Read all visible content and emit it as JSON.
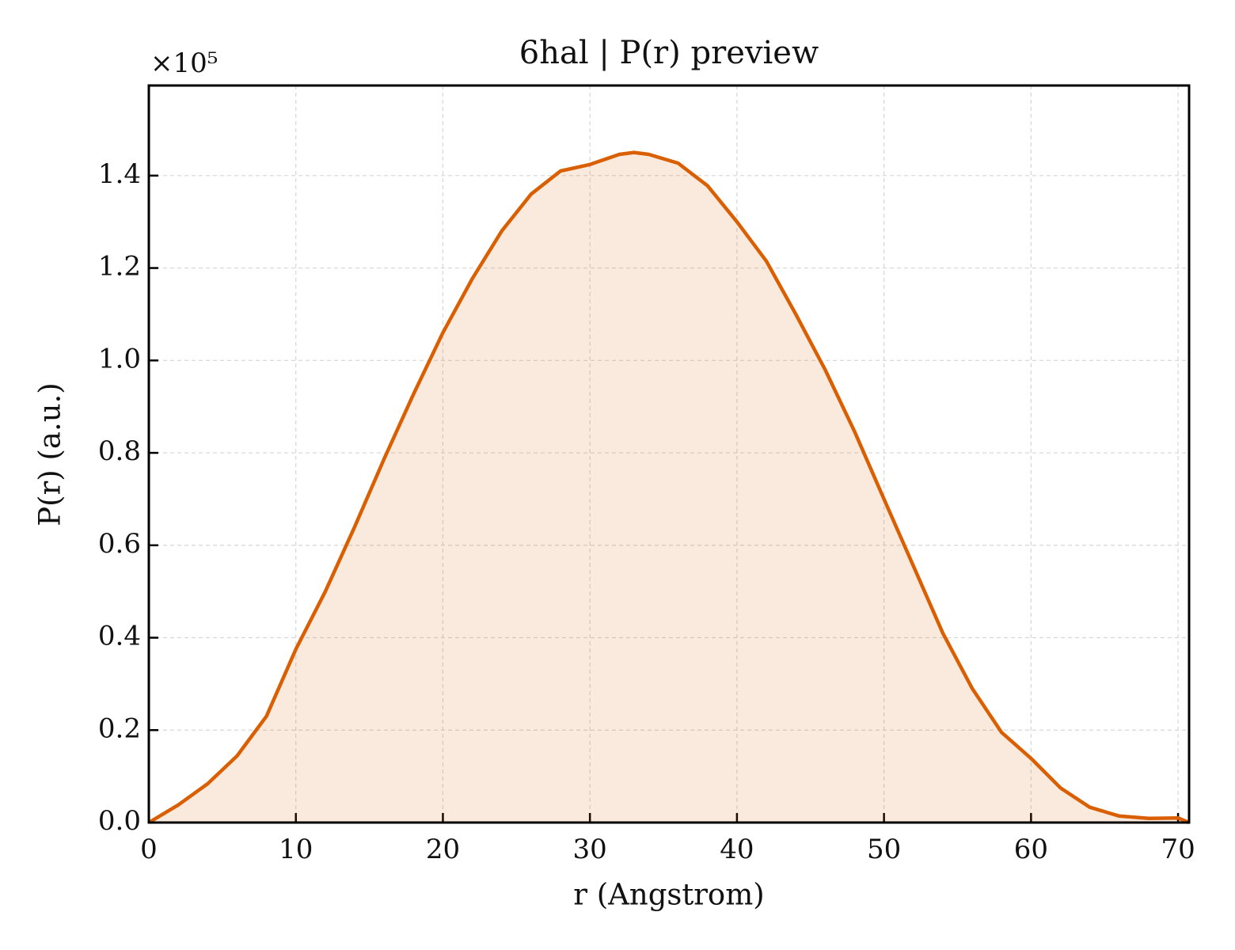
{
  "chart_data": {
    "type": "line",
    "title": "6hal | P(r) preview",
    "xlabel": "r (Angstrom)",
    "ylabel": "P(r) (a.u.)",
    "y_offset_label": "×10⁵",
    "x": [
      0,
      2,
      4,
      6,
      8,
      10,
      12,
      14,
      16,
      18,
      20,
      22,
      24,
      26,
      28,
      30,
      32,
      33,
      34,
      36,
      38,
      40,
      42,
      44,
      46,
      48,
      50,
      52,
      54,
      56,
      58,
      60,
      62,
      64,
      66,
      68,
      70,
      70.75
    ],
    "series": [
      {
        "name": "P(r)",
        "color": "#d95f02",
        "fill": true,
        "values": [
          0,
          0.038,
          0.084,
          0.144,
          0.23,
          0.375,
          0.5,
          0.64,
          0.787,
          0.927,
          1.06,
          1.177,
          1.28,
          1.36,
          1.41,
          1.424,
          1.446,
          1.45,
          1.446,
          1.427,
          1.378,
          1.3,
          1.215,
          1.1,
          0.98,
          0.846,
          0.7,
          0.555,
          0.41,
          0.29,
          0.195,
          0.139,
          0.075,
          0.033,
          0.014,
          0.009,
          0.01,
          0
        ]
      }
    ],
    "xlim": [
      0,
      70.75
    ],
    "ylim": [
      0,
      1.595
    ],
    "xticks": [
      0,
      10,
      20,
      30,
      40,
      50,
      60,
      70
    ],
    "yticks": [
      {
        "value": 0,
        "label": "0.0"
      },
      0.2,
      0.4,
      0.6,
      0.8,
      {
        "value": 1,
        "label": "1.0"
      },
      1.2,
      1.4
    ],
    "grid": true
  }
}
